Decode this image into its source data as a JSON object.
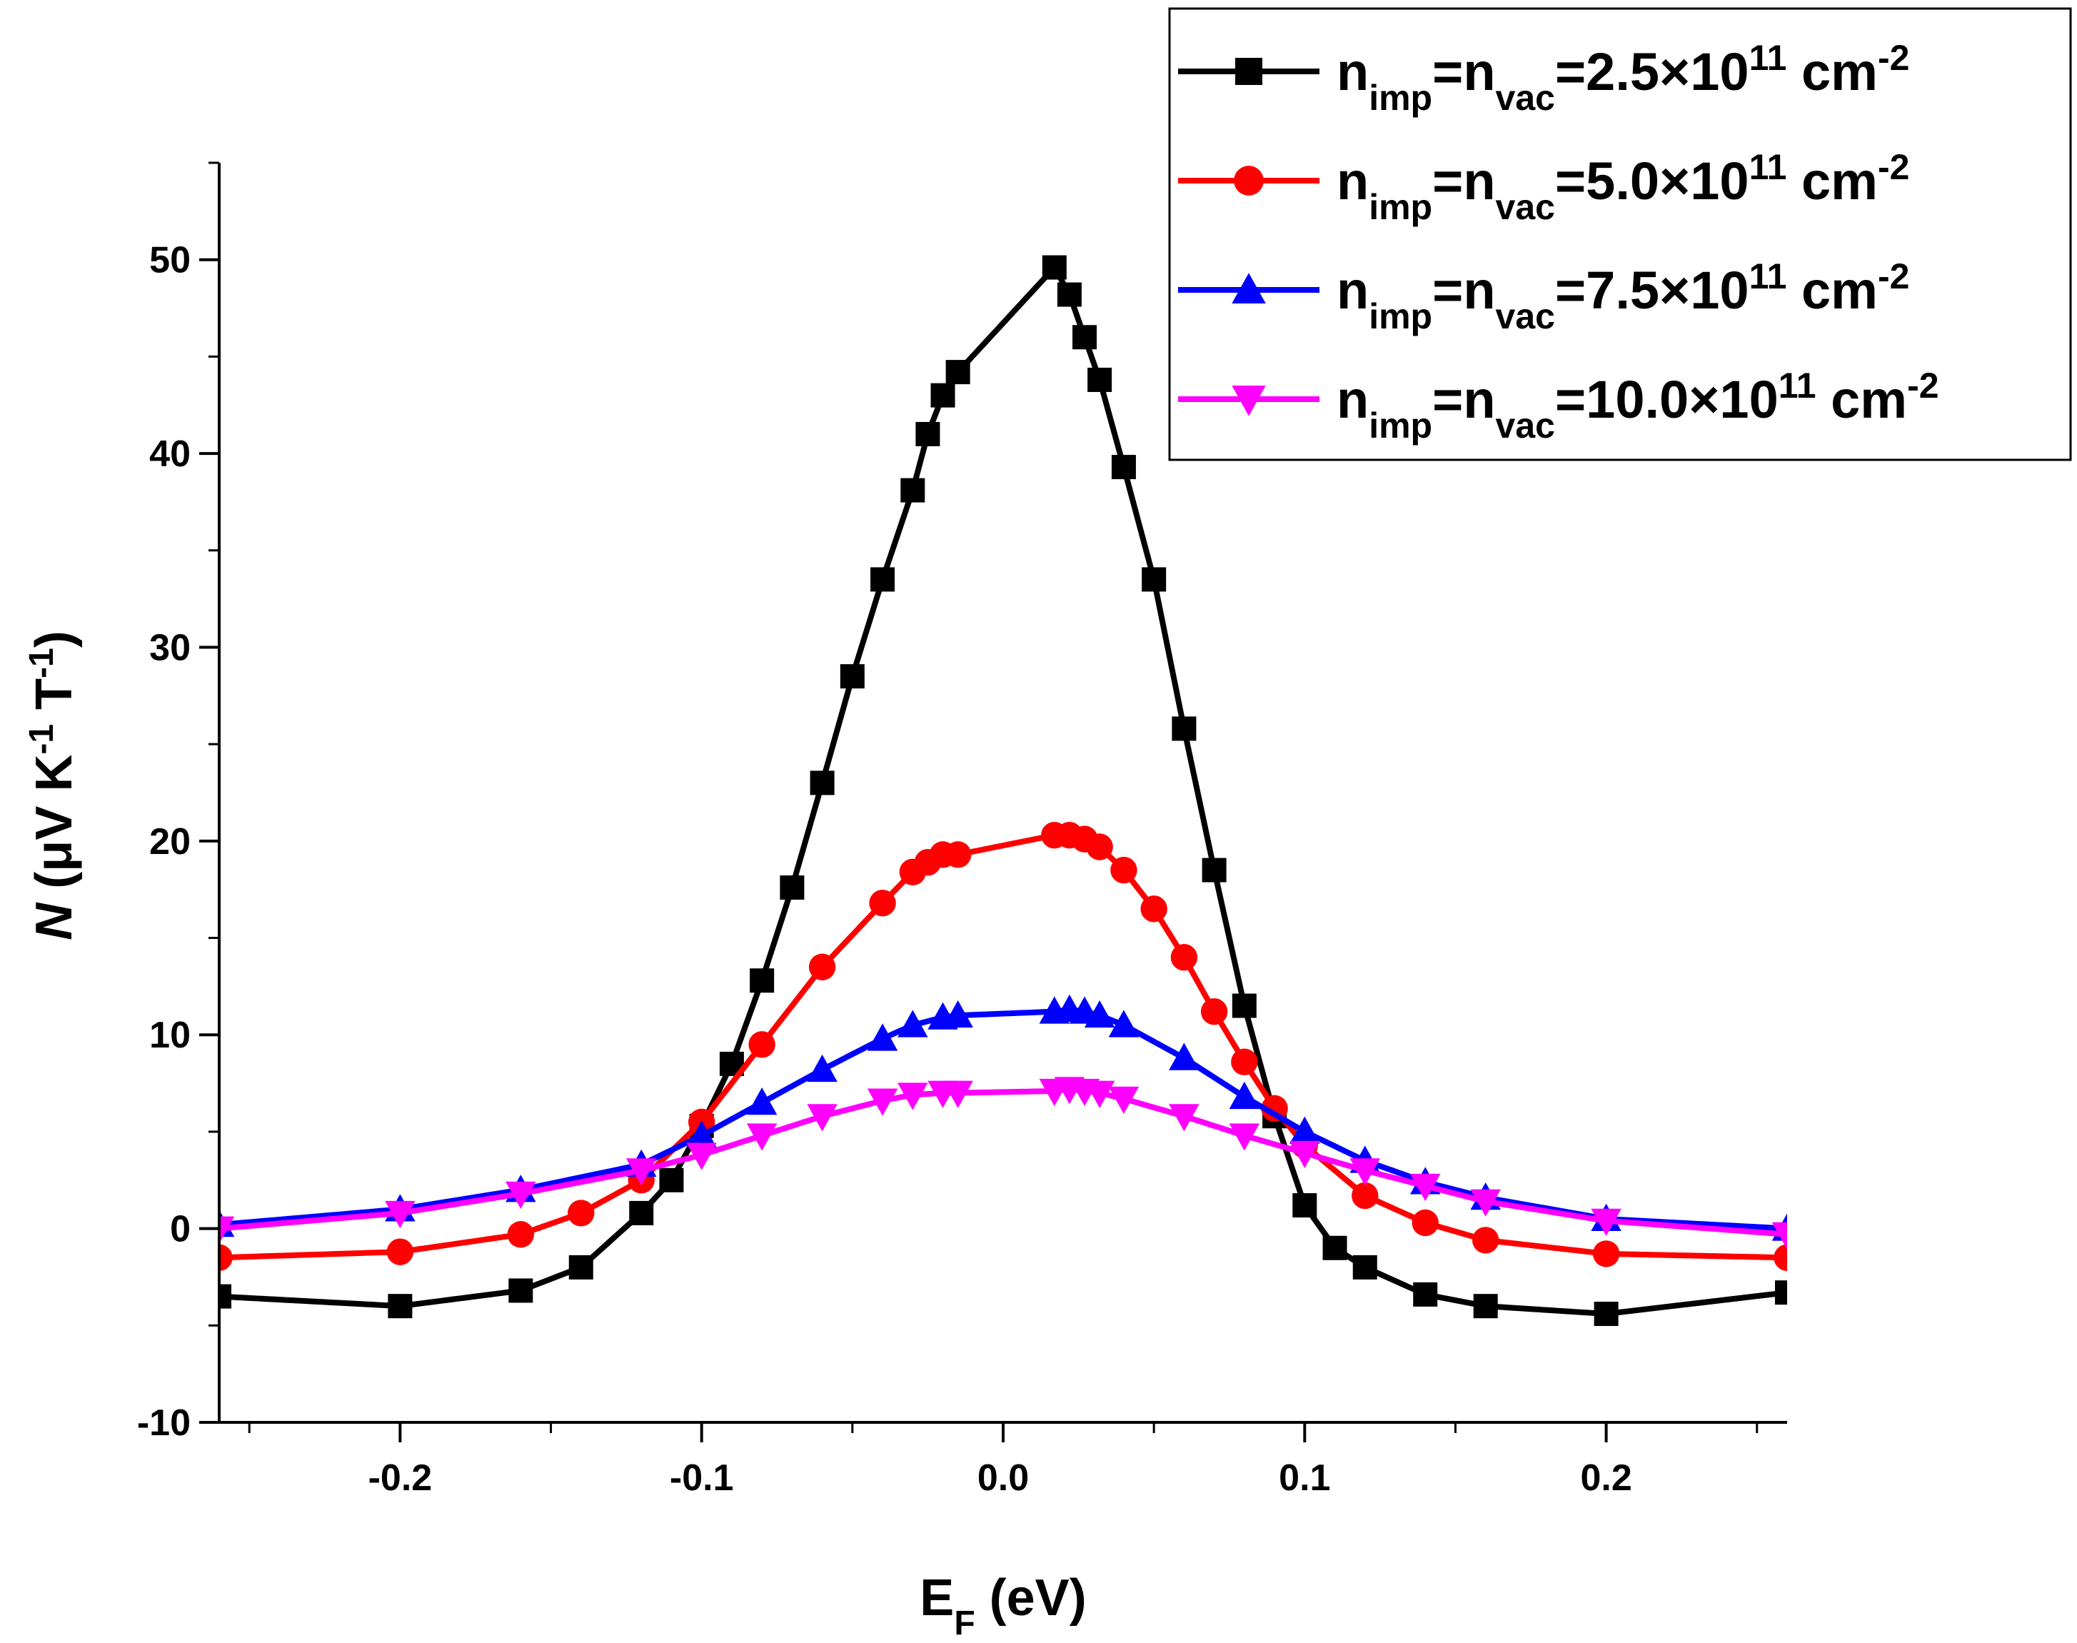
{
  "chart_data": {
    "type": "line",
    "xlabel": {
      "main": "E",
      "sub": "F",
      "rest": " (eV)"
    },
    "ylabel": {
      "main": "N",
      "rest1": " (μV K",
      "sup1": "-1",
      "rest2": " T",
      "sup2": "-1",
      "rest3": ")"
    },
    "xlim": [
      -0.26,
      0.26
    ],
    "ylim": [
      -10,
      55
    ],
    "xticks": [
      -0.2,
      -0.1,
      0.0,
      0.1,
      0.2
    ],
    "xtick_labels": [
      "-0.2",
      "-0.1",
      "0.0",
      "0.1",
      "0.2"
    ],
    "yticks": [
      -10,
      0,
      10,
      20,
      30,
      40,
      50
    ],
    "ytick_labels": [
      "-10",
      "0",
      "10",
      "20",
      "30",
      "40",
      "50"
    ],
    "grid": false,
    "legend_position": "top-right",
    "series": [
      {
        "legend": {
          "a": "n",
          "a_sub": "imp",
          "b": "=n",
          "b_sub": "vac",
          "c": "=2.5×10",
          "c_sup": "11",
          "d": " cm",
          "d_sup": "-2"
        },
        "color": "#000000",
        "marker": "square",
        "x": [
          -0.26,
          -0.2,
          -0.16,
          -0.14,
          -0.12,
          -0.11,
          -0.1,
          -0.09,
          -0.08,
          -0.07,
          -0.06,
          -0.05,
          -0.04,
          -0.03,
          -0.025,
          -0.02,
          -0.015,
          0.017,
          0.022,
          0.027,
          0.032,
          0.04,
          0.05,
          0.06,
          0.07,
          0.08,
          0.09,
          0.1,
          0.11,
          0.12,
          0.14,
          0.16,
          0.2,
          0.26
        ],
        "y": [
          -3.5,
          -4.0,
          -3.2,
          -2.0,
          0.8,
          2.5,
          5.3,
          8.5,
          12.8,
          17.6,
          23.0,
          28.5,
          33.5,
          38.1,
          41.0,
          43.0,
          44.2,
          49.6,
          48.2,
          46.0,
          43.8,
          39.3,
          33.5,
          25.8,
          18.5,
          11.5,
          5.8,
          1.2,
          -1.0,
          -2.0,
          -3.4,
          -4.0,
          -4.4,
          -3.3
        ]
      },
      {
        "legend": {
          "a": "n",
          "a_sub": "imp",
          "b": "=n",
          "b_sub": "vac",
          "c": "=5.0×10",
          "c_sup": "11",
          "d": " cm",
          "d_sup": "-2"
        },
        "color": "#ff0000",
        "marker": "circle",
        "x": [
          -0.26,
          -0.2,
          -0.16,
          -0.14,
          -0.12,
          -0.1,
          -0.08,
          -0.06,
          -0.04,
          -0.03,
          -0.025,
          -0.02,
          -0.015,
          0.017,
          0.022,
          0.027,
          0.032,
          0.04,
          0.05,
          0.06,
          0.07,
          0.08,
          0.09,
          0.1,
          0.12,
          0.14,
          0.16,
          0.2,
          0.26
        ],
        "y": [
          -1.5,
          -1.2,
          -0.3,
          0.8,
          2.5,
          5.5,
          9.5,
          13.5,
          16.8,
          18.4,
          18.9,
          19.3,
          19.3,
          20.3,
          20.3,
          20.1,
          19.7,
          18.5,
          16.5,
          14.0,
          11.2,
          8.6,
          6.2,
          4.3,
          1.7,
          0.3,
          -0.6,
          -1.3,
          -1.5
        ]
      },
      {
        "legend": {
          "a": "n",
          "a_sub": "imp",
          "b": "=n",
          "b_sub": "vac",
          "c": "=7.5×10",
          "c_sup": "11",
          "d": " cm",
          "d_sup": "-2"
        },
        "color": "#0000ff",
        "marker": "triangle-up",
        "x": [
          -0.26,
          -0.2,
          -0.16,
          -0.12,
          -0.1,
          -0.08,
          -0.06,
          -0.04,
          -0.03,
          -0.02,
          -0.015,
          0.017,
          0.022,
          0.027,
          0.032,
          0.04,
          0.06,
          0.08,
          0.1,
          0.12,
          0.14,
          0.16,
          0.2,
          0.26
        ],
        "y": [
          0.2,
          1.0,
          2.0,
          3.3,
          4.8,
          6.5,
          8.2,
          9.8,
          10.5,
          10.9,
          11.0,
          11.2,
          11.3,
          11.2,
          11.0,
          10.5,
          8.8,
          6.8,
          5.0,
          3.5,
          2.4,
          1.6,
          0.5,
          0.0
        ]
      },
      {
        "legend": {
          "a": "n",
          "a_sub": "imp",
          "b": "=n",
          "b_sub": "vac",
          "c": "=10.0×10",
          "c_sup": "11",
          "d": " cm",
          "d_sup": "-2"
        },
        "color": "#ff00ff",
        "marker": "triangle-down",
        "x": [
          -0.26,
          -0.2,
          -0.16,
          -0.12,
          -0.1,
          -0.08,
          -0.06,
          -0.04,
          -0.03,
          -0.02,
          -0.015,
          0.017,
          0.022,
          0.027,
          0.032,
          0.04,
          0.06,
          0.08,
          0.1,
          0.12,
          0.14,
          0.16,
          0.2,
          0.26
        ],
        "y": [
          0.0,
          0.8,
          1.8,
          3.0,
          3.8,
          4.8,
          5.8,
          6.6,
          6.9,
          7.0,
          7.0,
          7.1,
          7.2,
          7.1,
          7.0,
          6.7,
          5.8,
          4.8,
          3.9,
          3.0,
          2.2,
          1.4,
          0.4,
          -0.3
        ]
      }
    ]
  }
}
